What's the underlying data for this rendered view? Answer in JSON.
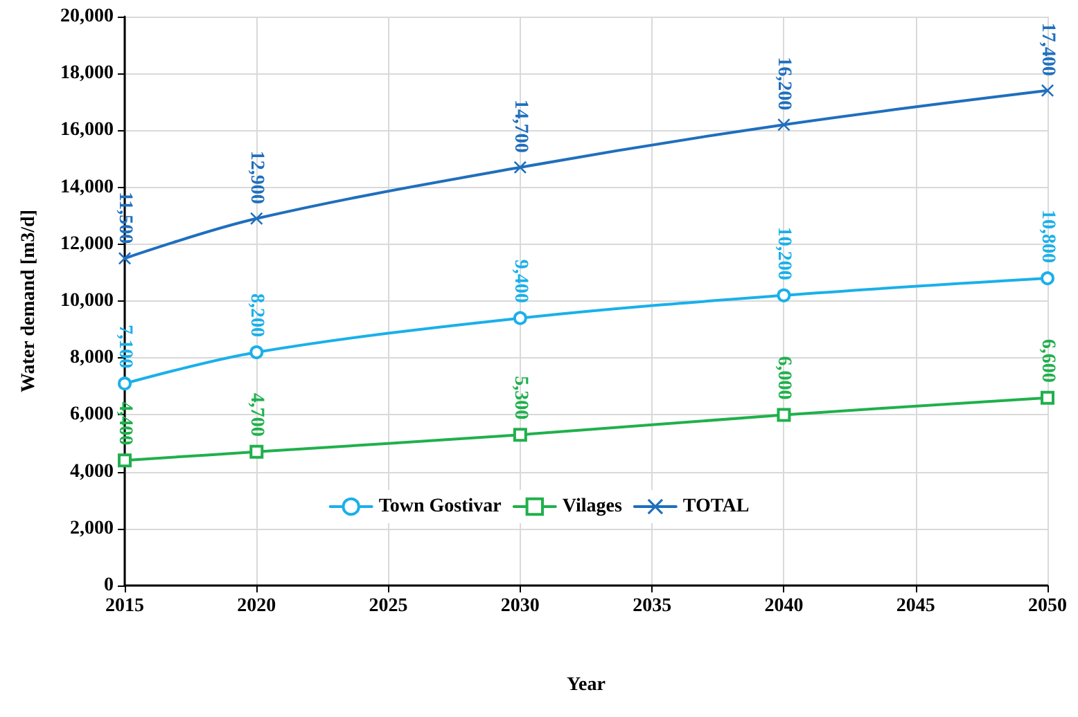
{
  "chart_data": {
    "type": "line",
    "xlabel": "Year",
    "ylabel": "Water demand [m3/d]",
    "x": [
      2015,
      2020,
      2030,
      2040,
      2050
    ],
    "xlim": [
      2015,
      2050
    ],
    "xticks": [
      2015,
      2020,
      2025,
      2030,
      2035,
      2040,
      2045,
      2050
    ],
    "ylim": [
      0,
      20000
    ],
    "yticks": [
      0,
      {
        "value": 2000,
        "label": "2,000"
      },
      {
        "value": 4000,
        "label": "4,000"
      },
      {
        "value": 6000,
        "label": "6,000"
      },
      {
        "value": 8000,
        "label": "8,000"
      },
      {
        "value": 10000,
        "label": "10,000"
      },
      {
        "value": 12000,
        "label": "12,000"
      },
      {
        "value": 14000,
        "label": "14,000"
      },
      {
        "value": 16000,
        "label": "16,000"
      },
      {
        "value": 18000,
        "label": "18,000"
      },
      {
        "value": 20000,
        "label": "20,000"
      }
    ],
    "grid": true,
    "legend": "bottom",
    "line_style": "solid",
    "series": [
      {
        "name": "Town Gostivar",
        "color": "#1ab0ea",
        "marker": "circle",
        "values": [
          7100,
          8200,
          9400,
          10200,
          10800
        ],
        "value_labels": [
          "7,100",
          "8,200",
          "9,400",
          "10,200",
          "10,800"
        ]
      },
      {
        "name": "Vilages",
        "color": "#20b04c",
        "marker": "square",
        "values": [
          4400,
          4700,
          5300,
          6000,
          6600
        ],
        "value_labels": [
          "4,400",
          "4,700",
          "5,300",
          "6,000",
          "6,600"
        ]
      },
      {
        "name": "TOTAL",
        "color": "#1f6fbd",
        "marker": "cross",
        "values": [
          11500,
          12900,
          14700,
          16200,
          17400
        ],
        "value_labels": [
          "11,500",
          "12,900",
          "14,700",
          "16,200",
          "17,400"
        ]
      }
    ]
  }
}
